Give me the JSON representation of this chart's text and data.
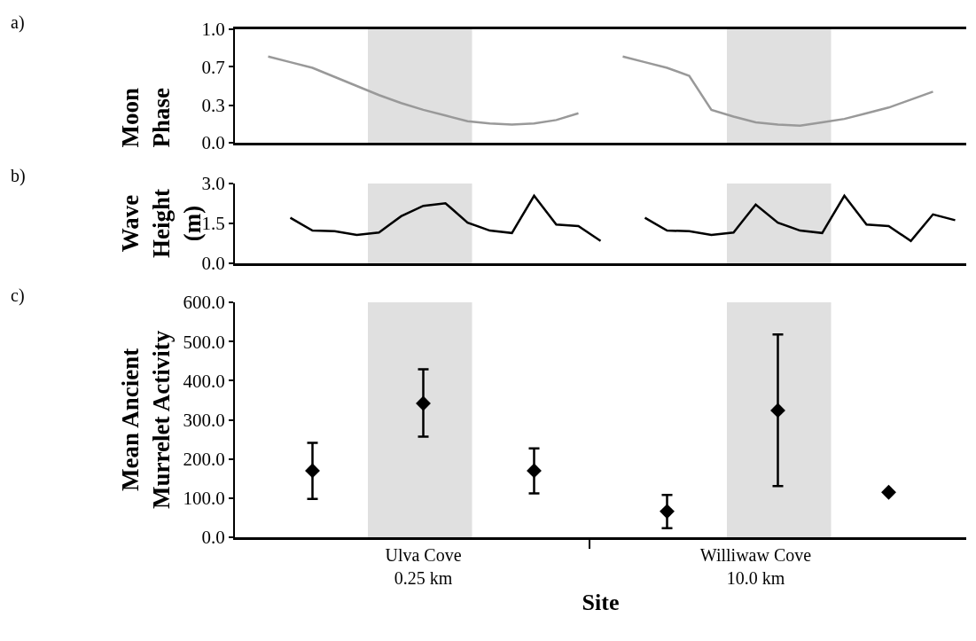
{
  "chart_data": [
    {
      "type": "line",
      "ylabel": "Moon\nPhase",
      "annotations": [
        "a)"
      ],
      "categories": [
        null,
        null,
        null,
        null,
        null,
        null,
        null,
        null,
        null,
        null,
        null,
        null,
        null,
        null,
        null,
        null,
        null,
        null,
        null,
        null,
        null,
        null,
        null,
        null,
        null,
        null,
        null,
        null,
        null,
        null,
        null,
        null,
        null
      ],
      "series": [
        {
          "color": "#999999",
          "values": [
            null,
            0.76,
            0.71,
            0.66,
            0.58,
            0.5,
            0.42,
            0.35,
            0.29,
            0.24,
            0.19,
            0.17,
            0.16,
            0.17,
            0.2,
            0.26,
            null,
            0.76,
            0.71,
            0.66,
            0.59,
            0.29,
            0.23,
            0.18,
            0.16,
            0.15,
            0.18,
            0.21,
            0.26,
            0.31,
            0.38,
            0.45,
            null
          ]
        }
      ],
      "ylim": [
        0,
        1
      ],
      "yticks": [
        {
          "value": 0,
          "label": "0.0"
        },
        {
          "value": 0.33,
          "label": "0.3"
        },
        {
          "value": 0.67,
          "label": "0.7"
        },
        {
          "value": 1,
          "label": "1.0"
        }
      ],
      "tick_labels": "y",
      "marker": "none",
      "line_style": "solid"
    },
    {
      "type": "line",
      "ylabel": "Wave\nHeight\n(m)",
      "annotations": [
        "b)"
      ],
      "categories": [
        null,
        null,
        null,
        null,
        null,
        null,
        null,
        null,
        null,
        null,
        null,
        null,
        null,
        null,
        null,
        null,
        null,
        null,
        null,
        null,
        null,
        null,
        null,
        null,
        null,
        null,
        null,
        null,
        null,
        null,
        null,
        null,
        null
      ],
      "series": [
        {
          "color": "#000000",
          "values": [
            null,
            null,
            1.71,
            1.23,
            1.21,
            1.07,
            1.16,
            1.77,
            2.16,
            2.26,
            1.53,
            1.23,
            1.14,
            2.54,
            1.46,
            1.4,
            0.84,
            null,
            1.71,
            1.23,
            1.21,
            1.07,
            1.16,
            2.21,
            1.53,
            1.23,
            1.14,
            2.54,
            1.46,
            1.4,
            0.84,
            1.84,
            1.62
          ]
        }
      ],
      "ylim": [
        0,
        3
      ],
      "yticks": [
        {
          "value": 0,
          "label": "0.0"
        },
        {
          "value": 1.5,
          "label": "1.5"
        },
        {
          "value": 3,
          "label": "3.0"
        }
      ],
      "tick_labels": "y",
      "marker": "none",
      "line_style": "solid"
    },
    {
      "type": "scatter",
      "ylabel": "Mean Ancient\nMurrelet Activity",
      "xlabel": "Site",
      "annotations": [
        "c)"
      ],
      "categories": [
        null,
        null,
        null,
        null,
        null,
        null,
        null,
        null,
        "Ulva Cove\n0.25 km",
        null,
        null,
        null,
        null,
        null,
        null,
        null,
        null,
        null,
        null,
        null,
        null,
        null,
        null,
        "Williwaw Cove\n10.0 km",
        null,
        null,
        null,
        null,
        null,
        null,
        null,
        null,
        null
      ],
      "series": [
        {
          "color": "#000000",
          "values": [
            null,
            null,
            null,
            170,
            null,
            null,
            null,
            null,
            342,
            null,
            null,
            null,
            null,
            170,
            null,
            null,
            null,
            null,
            null,
            66,
            null,
            null,
            null,
            null,
            324,
            null,
            null,
            null,
            null,
            115,
            null,
            null,
            null
          ],
          "errors": [
            null,
            null,
            null,
            [
              98,
              241
            ],
            null,
            null,
            null,
            null,
            [
              257,
              429
            ],
            null,
            null,
            null,
            null,
            [
              112,
              227
            ],
            null,
            null,
            null,
            null,
            null,
            [
              23,
              108
            ],
            null,
            null,
            null,
            null,
            [
              131,
              518
            ],
            null,
            null,
            null,
            null,
            null,
            null,
            null,
            null
          ]
        }
      ],
      "ylim": [
        0,
        600
      ],
      "yticks": [
        {
          "value": 0,
          "label": "0.0"
        },
        {
          "value": 100,
          "label": "100.0"
        },
        {
          "value": 200,
          "label": "200.0"
        },
        {
          "value": 300,
          "label": "300.0"
        },
        {
          "value": 400,
          "label": "400.0"
        },
        {
          "value": 500,
          "label": "500.0"
        },
        {
          "value": 600,
          "label": "600.0"
        }
      ],
      "marker": "diamond"
    }
  ]
}
